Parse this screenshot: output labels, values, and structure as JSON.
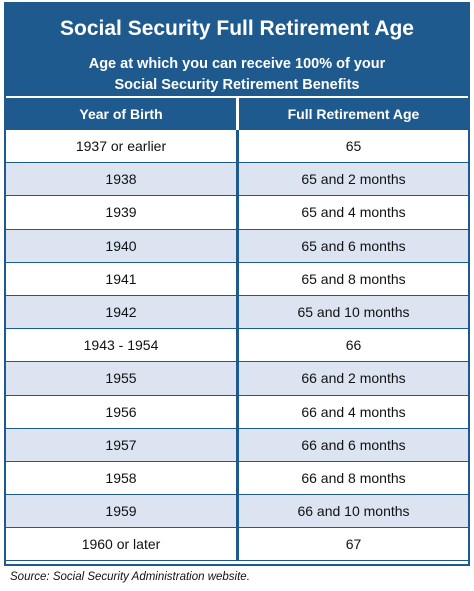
{
  "chart_data": {
    "type": "table",
    "title": "Social Security Full Retirement Age",
    "subtitle_line1": "Age at which you can receive 100% of your",
    "subtitle_line2": "Social Security Retirement Benefits",
    "columns": [
      "Year of Birth",
      "Full Retirement Age"
    ],
    "rows": [
      [
        "1937 or earlier",
        "65"
      ],
      [
        "1938",
        "65 and 2 months"
      ],
      [
        "1939",
        "65 and 4 months"
      ],
      [
        "1940",
        "65 and 6 months"
      ],
      [
        "1941",
        "65 and 8 months"
      ],
      [
        "1942",
        "65 and 10 months"
      ],
      [
        "1943 - 1954",
        "66"
      ],
      [
        "1955",
        "66 and 2 months"
      ],
      [
        "1956",
        "66 and 4 months"
      ],
      [
        "1957",
        "66 and 6 months"
      ],
      [
        "1958",
        "66 and 8 months"
      ],
      [
        "1959",
        "66 and 10 months"
      ],
      [
        "1960 or later",
        "67"
      ]
    ],
    "source": "Source: Social Security Administration website."
  },
  "colors": {
    "header_blue": "#1f5a8f",
    "alt_row": "#dce4f2"
  }
}
